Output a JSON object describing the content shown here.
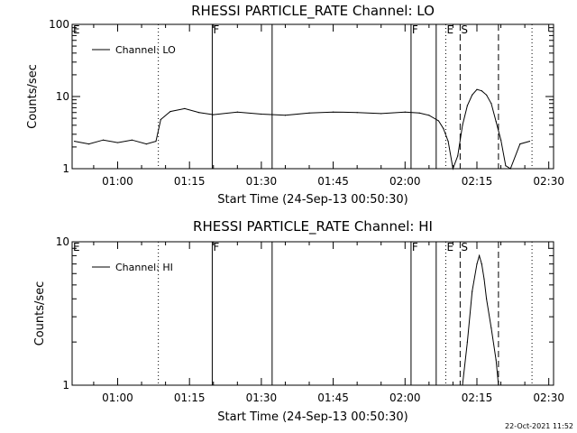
{
  "footer_timestamp": "22-Oct-2021 11:52",
  "chart_data": [
    {
      "type": "line",
      "title": "RHESSI PARTICLE_RATE Channel: LO",
      "xlabel": "Start Time (24-Sep-13 00:50:30)",
      "ylabel": "Counts/sec",
      "yscale": "log",
      "ylim": [
        1,
        100
      ],
      "ytick_labels": [
        "1",
        "10",
        "100"
      ],
      "xlim": [
        "00:50:30",
        "02:31:00"
      ],
      "xtick_labels": [
        "01:00",
        "01:15",
        "01:30",
        "01:45",
        "02:00",
        "02:15",
        "02:30"
      ],
      "legend": {
        "position": "top-left",
        "entries": [
          "Channel: LO"
        ]
      },
      "series": [
        {
          "name": "Channel: LO",
          "x": [
            "00:51",
            "00:54",
            "00:57",
            "01:00",
            "01:03",
            "01:06",
            "01:08",
            "01:09",
            "01:11",
            "01:14",
            "01:17",
            "01:20",
            "01:25",
            "01:30",
            "01:35",
            "01:40",
            "01:45",
            "01:50",
            "01:55",
            "02:00",
            "02:03",
            "02:05",
            "02:07",
            "02:08",
            "02:09",
            "02:10",
            "02:11",
            "02:12",
            "02:13",
            "02:14",
            "02:15",
            "02:16",
            "02:17",
            "02:18",
            "02:19",
            "02:20",
            "02:21",
            "02:22",
            "02:24",
            "02:26"
          ],
          "values": [
            2.4,
            2.2,
            2.5,
            2.3,
            2.5,
            2.2,
            2.4,
            4.8,
            6.2,
            6.8,
            6.0,
            5.6,
            6.1,
            5.7,
            5.5,
            5.9,
            6.1,
            6.0,
            5.8,
            6.1,
            5.9,
            5.5,
            4.6,
            3.6,
            2.4,
            1.0,
            1.5,
            4.0,
            7.5,
            10.5,
            12.5,
            12.0,
            10.5,
            8.0,
            4.5,
            2.5,
            1.1,
            1.0,
            2.2,
            2.4
          ]
        }
      ],
      "markers": [
        {
          "time": "00:50:30",
          "label": "E",
          "style": "dotted"
        },
        {
          "time": "01:08:30",
          "label": "",
          "style": "dotted"
        },
        {
          "time": "01:19:45",
          "label": "F",
          "style": "solid"
        },
        {
          "time": "01:32:15",
          "label": "",
          "style": "solid"
        },
        {
          "time": "02:01:15",
          "label": "F",
          "style": "solid"
        },
        {
          "time": "02:06:30",
          "label": "",
          "style": "solid"
        },
        {
          "time": "02:08:30",
          "label": "E",
          "style": "dotted"
        },
        {
          "time": "02:11:30",
          "label": "S",
          "style": "dashed"
        },
        {
          "time": "02:19:30",
          "label": "",
          "style": "dashed"
        },
        {
          "time": "02:26:30",
          "label": "",
          "style": "dotted"
        }
      ]
    },
    {
      "type": "line",
      "title": "RHESSI PARTICLE_RATE Channel: HI",
      "xlabel": "Start Time (24-Sep-13 00:50:30)",
      "ylabel": "Counts/sec",
      "yscale": "log",
      "ylim": [
        1,
        10
      ],
      "ytick_labels": [
        "1",
        "10"
      ],
      "xlim": [
        "00:50:30",
        "02:31:00"
      ],
      "xtick_labels": [
        "01:00",
        "01:15",
        "01:30",
        "01:45",
        "02:00",
        "02:15",
        "02:30"
      ],
      "legend": {
        "position": "top-left",
        "entries": [
          "Channel: HI"
        ]
      },
      "series": [
        {
          "name": "Channel: HI",
          "x": [
            "02:12",
            "02:13",
            "02:14",
            "02:15",
            "02:15:30",
            "02:16",
            "02:16:30",
            "02:17",
            "02:18",
            "02:19",
            "02:19:30"
          ],
          "values": [
            1.0,
            2.0,
            4.5,
            7.0,
            8.0,
            7.0,
            5.5,
            4.0,
            2.5,
            1.5,
            1.0
          ]
        }
      ],
      "markers": [
        {
          "time": "00:50:30",
          "label": "E",
          "style": "dotted"
        },
        {
          "time": "01:08:30",
          "label": "",
          "style": "dotted"
        },
        {
          "time": "01:19:45",
          "label": "F",
          "style": "solid"
        },
        {
          "time": "01:32:15",
          "label": "",
          "style": "solid"
        },
        {
          "time": "02:01:15",
          "label": "F",
          "style": "solid"
        },
        {
          "time": "02:06:30",
          "label": "",
          "style": "solid"
        },
        {
          "time": "02:08:30",
          "label": "E",
          "style": "dotted"
        },
        {
          "time": "02:11:30",
          "label": "S",
          "style": "dashed"
        },
        {
          "time": "02:19:30",
          "label": "",
          "style": "dashed"
        },
        {
          "time": "02:26:30",
          "label": "",
          "style": "dotted"
        }
      ]
    }
  ]
}
